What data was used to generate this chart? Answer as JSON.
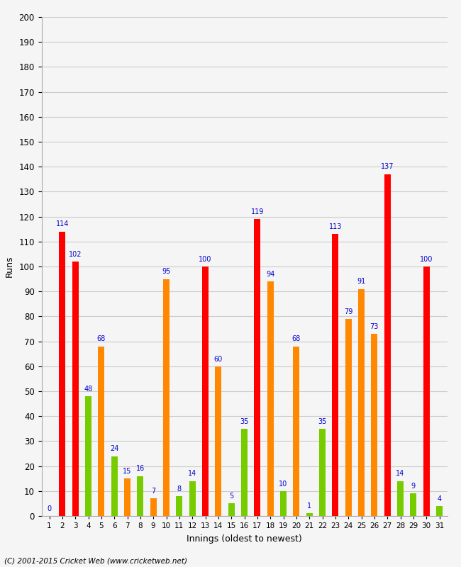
{
  "xlabel": "Innings (oldest to newest)",
  "ylabel": "Runs",
  "ylim": [
    0,
    200
  ],
  "yticks": [
    0,
    10,
    20,
    30,
    40,
    50,
    60,
    70,
    80,
    90,
    100,
    110,
    120,
    130,
    140,
    150,
    160,
    170,
    180,
    190,
    200
  ],
  "innings": [
    1,
    2,
    3,
    4,
    5,
    6,
    7,
    8,
    9,
    10,
    11,
    12,
    13,
    14,
    15,
    16,
    17,
    18,
    19,
    20,
    21,
    22,
    23,
    24,
    25,
    26,
    27,
    28,
    29,
    30,
    31
  ],
  "values": [
    0,
    114,
    102,
    48,
    68,
    24,
    15,
    16,
    7,
    95,
    8,
    14,
    100,
    60,
    5,
    35,
    119,
    94,
    10,
    68,
    1,
    35,
    113,
    79,
    91,
    73,
    137,
    14,
    9,
    100,
    4
  ],
  "colors": [
    "#ff0000",
    "#ff0000",
    "#ff0000",
    "#77cc00",
    "#ff8800",
    "#77cc00",
    "#ff8800",
    "#77cc00",
    "#ff8800",
    "#ff8800",
    "#77cc00",
    "#77cc00",
    "#ff0000",
    "#ff8800",
    "#77cc00",
    "#77cc00",
    "#ff0000",
    "#ff8800",
    "#77cc00",
    "#ff8800",
    "#77cc00",
    "#77cc00",
    "#ff0000",
    "#ff8800",
    "#ff8800",
    "#ff8800",
    "#ff0000",
    "#77cc00",
    "#77cc00",
    "#ff0000",
    "#77cc00"
  ],
  "label_color": "#0000cc",
  "background_color": "#f5f5f5",
  "grid_color": "#cccccc",
  "footer": "(C) 2001-2015 Cricket Web (www.cricketweb.net)",
  "bar_width": 0.5
}
